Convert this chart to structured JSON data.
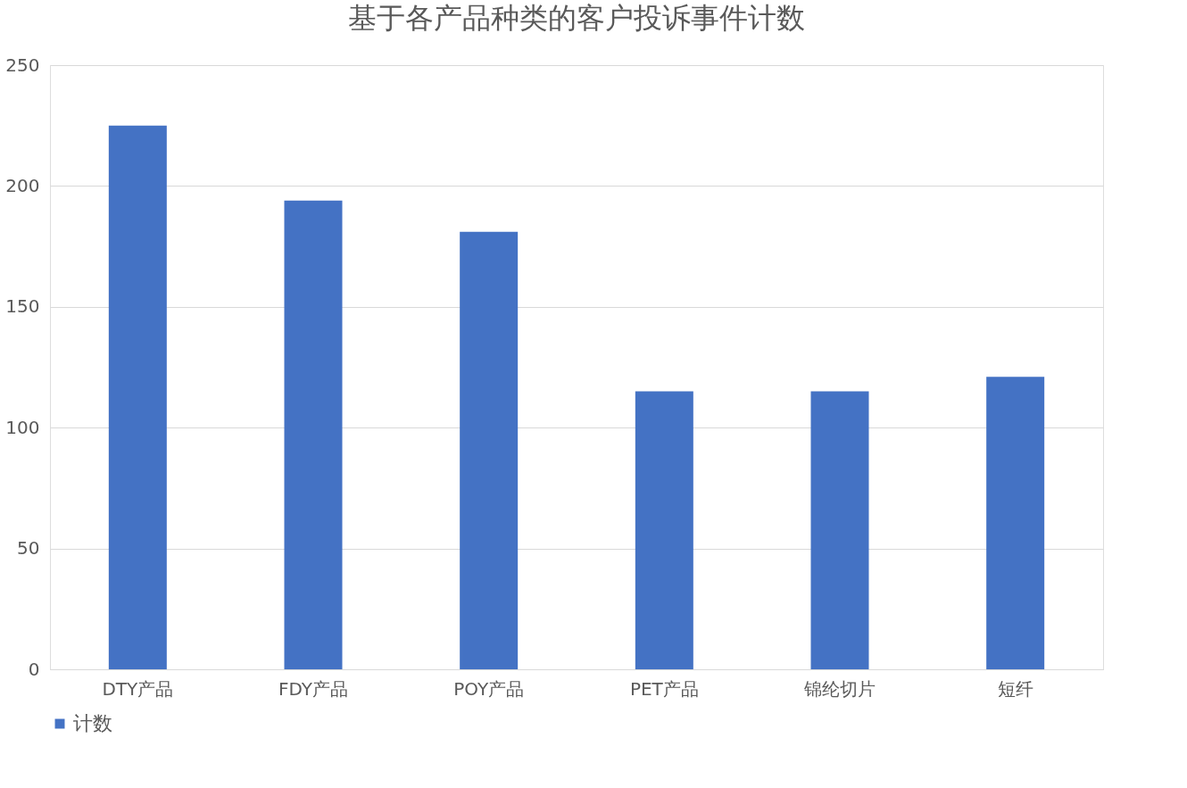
{
  "chart_data": {
    "type": "bar",
    "title": "基于各产品种类的客户投诉事件计数",
    "categories": [
      "DTY产品",
      "FDY产品",
      "POY产品",
      "PET产品",
      "锦纶切片",
      "短纤"
    ],
    "series": [
      {
        "name": "计数",
        "color": "#4472c4",
        "values": [
          225,
          194,
          181,
          115,
          115,
          121
        ]
      }
    ],
    "ylim": [
      0,
      250
    ],
    "yticks": [
      0,
      50,
      100,
      150,
      200,
      250
    ],
    "grid": "y",
    "legend": "bottom"
  }
}
